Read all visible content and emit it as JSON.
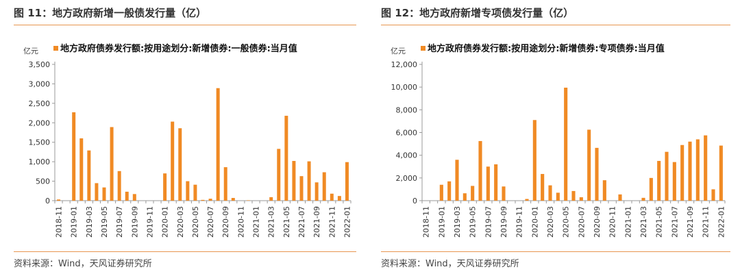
{
  "colors": {
    "bar": "#f08a24",
    "rule": "#e8964f",
    "axis": "#999999",
    "grid": "#dddddd"
  },
  "panels": [
    {
      "fig_title": "图 11：地方政府新增一般债发行量（亿）",
      "source": "资料来源：Wind，天风证券研究所",
      "chart_data": {
        "type": "bar",
        "title": "",
        "unit_label": "亿元",
        "legend": "地方政府债券发行额:按用途划分:新增债券:一般债券:当月值",
        "legend_position": "top-left",
        "grid": false,
        "ylim": [
          0,
          3500
        ],
        "yticks": [
          0,
          500,
          1000,
          1500,
          2000,
          2500,
          3000,
          3500
        ],
        "ytick_labels": [
          "0",
          "500",
          "1,000",
          "1,500",
          "2,000",
          "2,500",
          "3,000",
          "3,500"
        ],
        "categories": [
          "2018-11",
          "2018-12",
          "2019-01",
          "2019-02",
          "2019-03",
          "2019-04",
          "2019-05",
          "2019-06",
          "2019-07",
          "2019-08",
          "2019-09",
          "2019-10",
          "2019-11",
          "2019-12",
          "2020-01",
          "2020-02",
          "2020-03",
          "2020-04",
          "2020-05",
          "2020-06",
          "2020-07",
          "2020-08",
          "2020-09",
          "2020-10",
          "2020-11",
          "2020-12",
          "2021-01",
          "2021-02",
          "2021-03",
          "2021-04",
          "2021-05",
          "2021-06",
          "2021-07",
          "2021-08",
          "2021-09",
          "2021-10",
          "2021-11",
          "2021-12",
          "2022-01"
        ],
        "x_tick_labels": [
          "2018-11",
          "2019-01",
          "2019-03",
          "2019-05",
          "2019-07",
          "2019-09",
          "2019-11",
          "2020-01",
          "2020-03",
          "2020-05",
          "2020-07",
          "2020-09",
          "2020-11",
          "2021-01",
          "2021-03",
          "2021-05",
          "2021-07",
          "2021-09",
          "2021-11",
          "2022-01"
        ],
        "values": [
          30,
          0,
          2270,
          1600,
          1290,
          450,
          340,
          1890,
          760,
          230,
          170,
          0,
          0,
          0,
          700,
          2030,
          1860,
          500,
          410,
          20,
          50,
          2890,
          860,
          70,
          0,
          10,
          0,
          0,
          90,
          1330,
          2180,
          1020,
          630,
          1010,
          470,
          730,
          180,
          120,
          990
        ]
      }
    },
    {
      "fig_title": "图 12：地方政府新增专项债发行量（亿）",
      "source": "资料来源：Wind，天风证券研究所",
      "chart_data": {
        "type": "bar",
        "title": "",
        "unit_label": "亿元",
        "legend": "地方政府债券发行额:按用途划分:新增债券:专项债券:当月值",
        "legend_position": "top-left",
        "grid": false,
        "ylim": [
          0,
          12000
        ],
        "yticks": [
          0,
          2000,
          4000,
          6000,
          8000,
          10000,
          12000
        ],
        "ytick_labels": [
          "0",
          "2,000",
          "4,000",
          "6,000",
          "8,000",
          "10,000",
          "12,000"
        ],
        "categories": [
          "2018-11",
          "2018-12",
          "2019-01",
          "2019-02",
          "2019-03",
          "2019-04",
          "2019-05",
          "2019-06",
          "2019-07",
          "2019-08",
          "2019-09",
          "2019-10",
          "2019-11",
          "2019-12",
          "2020-01",
          "2020-02",
          "2020-03",
          "2020-04",
          "2020-05",
          "2020-06",
          "2020-07",
          "2020-08",
          "2020-09",
          "2020-10",
          "2020-11",
          "2020-12",
          "2021-01",
          "2021-02",
          "2021-03",
          "2021-04",
          "2021-05",
          "2021-06",
          "2021-07",
          "2021-08",
          "2021-09",
          "2021-10",
          "2021-11",
          "2021-12",
          "2022-01"
        ],
        "x_tick_labels": [
          "2018-11",
          "2019-01",
          "2019-03",
          "2019-05",
          "2019-07",
          "2019-09",
          "2019-11",
          "2020-01",
          "2020-03",
          "2020-05",
          "2020-07",
          "2020-09",
          "2020-11",
          "2021-01",
          "2021-03",
          "2021-05",
          "2021-07",
          "2021-09",
          "2021-11",
          "2022-01"
        ],
        "values": [
          0,
          0,
          1400,
          1700,
          3600,
          650,
          1300,
          5250,
          3000,
          3200,
          1250,
          0,
          0,
          150,
          7100,
          2350,
          1350,
          700,
          9950,
          850,
          300,
          6250,
          4650,
          1800,
          0,
          550,
          0,
          0,
          250,
          2000,
          3500,
          4300,
          3400,
          4900,
          5200,
          5400,
          5750,
          1000,
          4850
        ]
      }
    }
  ]
}
